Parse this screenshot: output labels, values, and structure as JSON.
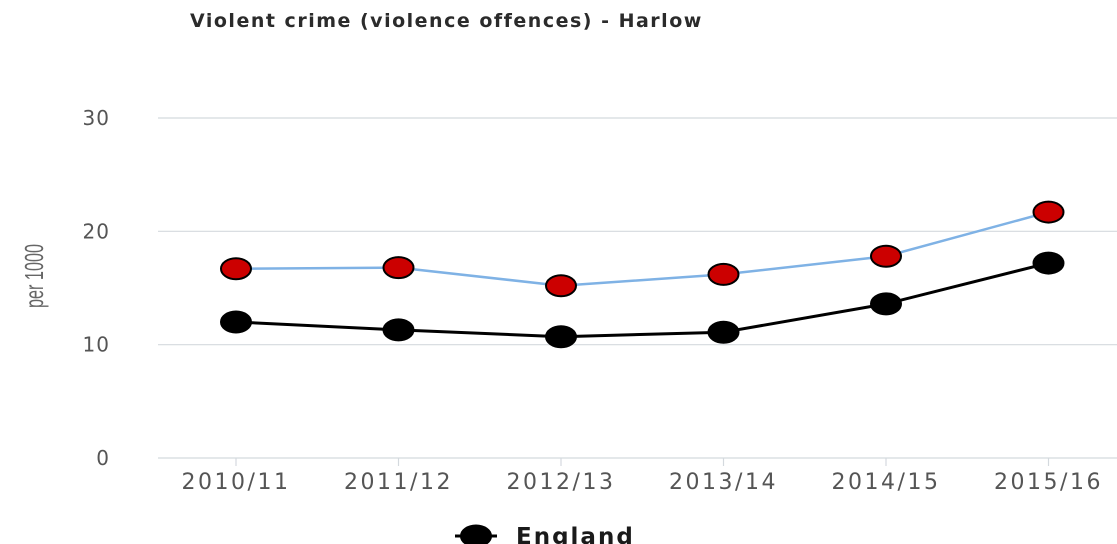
{
  "chart_data": {
    "type": "line",
    "title": "Violent crime (violence offences) - Harlow",
    "ylabel": "per 1000",
    "xlabel": "",
    "categories": [
      "2010/11",
      "2011/12",
      "2012/13",
      "2013/14",
      "2014/15",
      "2015/16"
    ],
    "ylim": [
      0,
      30
    ],
    "yticks": [
      0,
      10,
      20,
      30
    ],
    "grid": true,
    "legend": "bottom-center",
    "series": [
      {
        "key": "harlow",
        "line_color": "#7fb2e5",
        "marker_color": "#cc0000",
        "values": [
          16.7,
          16.8,
          15.2,
          16.2,
          17.8,
          21.7
        ]
      },
      {
        "name": "England",
        "key": "england",
        "line_color": "#000000",
        "marker_color": "#000000",
        "values": [
          12.0,
          11.3,
          10.7,
          11.1,
          13.6,
          17.2
        ]
      }
    ]
  }
}
